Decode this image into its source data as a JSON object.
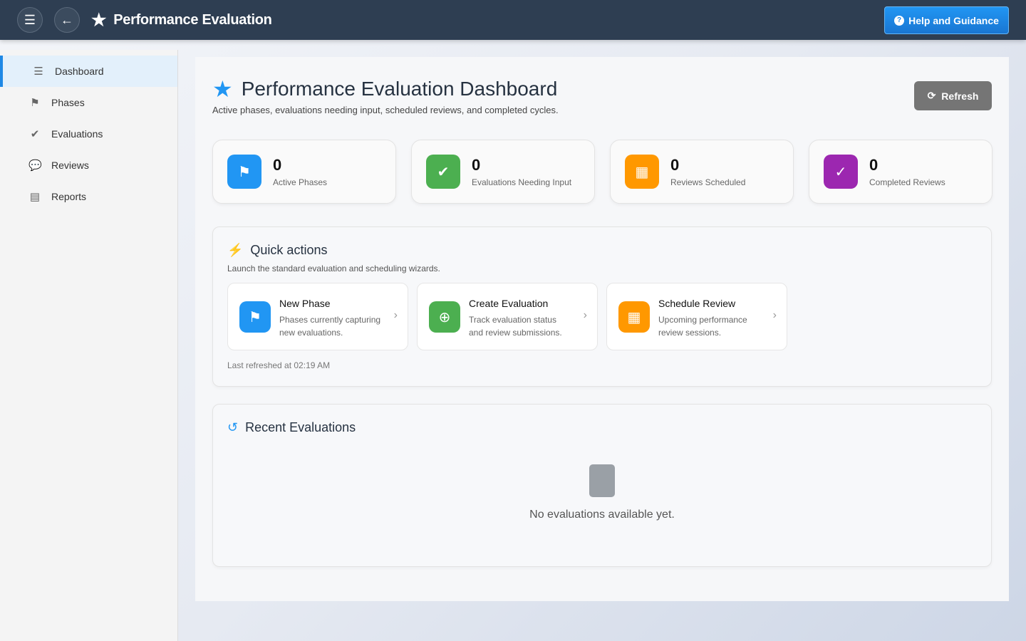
{
  "header": {
    "title": "Performance Evaluation",
    "help_label": "Help and Guidance"
  },
  "sidebar": {
    "items": [
      {
        "label": "Dashboard",
        "icon": "chart-icon",
        "active": true
      },
      {
        "label": "Phases",
        "icon": "signs-icon"
      },
      {
        "label": "Evaluations",
        "icon": "check-circle-icon"
      },
      {
        "label": "Reviews",
        "icon": "comments-icon"
      },
      {
        "label": "Reports",
        "icon": "file-icon"
      }
    ]
  },
  "page": {
    "title": "Performance Evaluation Dashboard",
    "subtitle": "Active phases, evaluations needing input, scheduled reviews, and completed cycles.",
    "refresh_label": "Refresh"
  },
  "stats": [
    {
      "value": "0",
      "label": "Active Phases",
      "color": "#2196f3"
    },
    {
      "value": "0",
      "label": "Evaluations Needing Input",
      "color": "#4caf50"
    },
    {
      "value": "0",
      "label": "Reviews Scheduled",
      "color": "#ff9800"
    },
    {
      "value": "0",
      "label": "Completed Reviews",
      "color": "#9c27b0"
    }
  ],
  "quick_actions": {
    "title": "Quick actions",
    "subtitle": "Launch the standard evaluation and scheduling wizards.",
    "items": [
      {
        "title": "New Phase",
        "desc": "Phases currently capturing new evaluations.",
        "color": "#2196f3"
      },
      {
        "title": "Create Evaluation",
        "desc": "Track evaluation status and review submissions.",
        "color": "#4caf50"
      },
      {
        "title": "Schedule Review",
        "desc": "Upcoming performance review sessions.",
        "color": "#ff9800"
      }
    ],
    "last_refreshed": "Last refreshed at 02:19 AM"
  },
  "recent": {
    "title": "Recent Evaluations",
    "empty_text": "No evaluations available yet."
  }
}
